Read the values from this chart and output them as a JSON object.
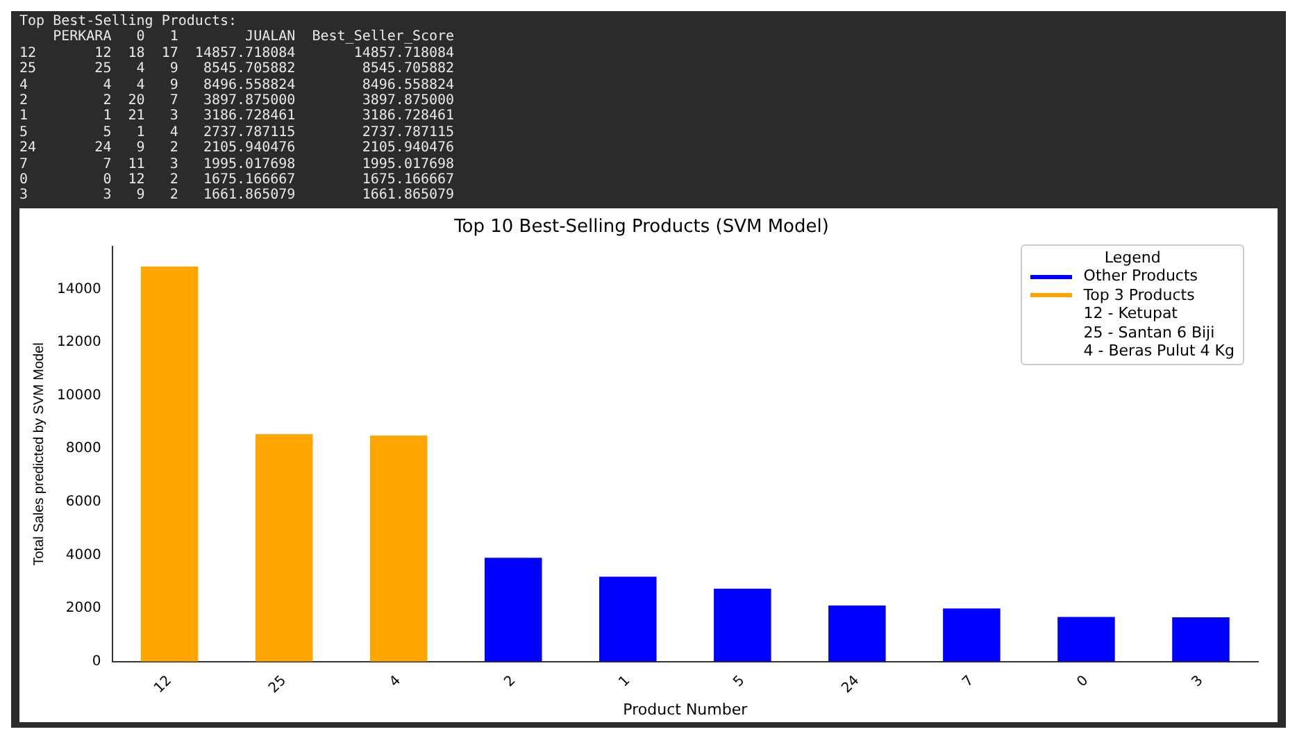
{
  "chart_data": {
    "type": "bar",
    "title": "Top 10 Best-Selling Products (SVM Model)",
    "xlabel": "Product Number",
    "ylabel": "Total Sales predicted by SVM Model",
    "legend_title": "Legend",
    "categories": [
      "12",
      "25",
      "4",
      "2",
      "1",
      "5",
      "24",
      "7",
      "0",
      "3"
    ],
    "series": [
      {
        "name": "Other Products",
        "color": "#0000ff",
        "values": [
          null,
          null,
          null,
          3897.875,
          3186.728461,
          2737.787115,
          2105.940476,
          1995.017698,
          1675.166667,
          1661.865079
        ]
      },
      {
        "name": "Top 3 Products",
        "color": "#ffa500",
        "values": [
          14857.718084,
          8545.705882,
          8496.558824,
          null,
          null,
          null,
          null,
          null,
          null,
          null
        ]
      }
    ],
    "ylim": [
      0,
      15600
    ],
    "yticks": [
      0,
      2000,
      4000,
      6000,
      8000,
      10000,
      12000,
      14000
    ],
    "legend": "top right",
    "annotations": [
      "Top Best-Selling Products:",
      "    PERKARA   0   1        JUALAN  Best_Seller_Score",
      "12       12  18  17  14857.718084       14857.718084",
      "25       25   4   9   8545.705882        8545.705882",
      "4         4   4   9   8496.558824        8496.558824",
      "2         2  20   7   3897.875000        3897.875000",
      "1         1  21   3   3186.728461        3186.728461",
      "5         5   1   4   2737.787115        2737.787115",
      "24       24   9   2   2105.940476        2105.940476",
      "7         7  11   3   1995.017698        1995.017698",
      "0         0  12   2   1675.166667        1675.166667",
      "3         3   9   2   1661.865079        1661.865079",
      "12 - Ketupat",
      "25 - Santan 6 Biji",
      "4 - Beras Pulut 4 Kg"
    ]
  }
}
